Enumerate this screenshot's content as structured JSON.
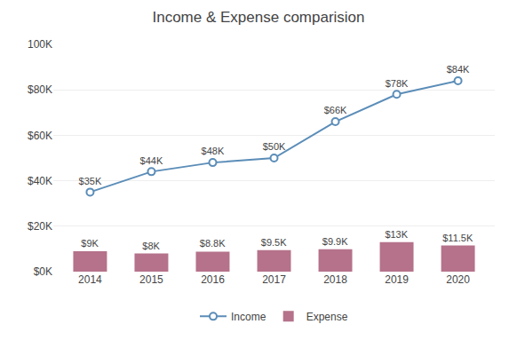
{
  "chart_data": {
    "type": "bar",
    "title": "Income & Expense comparision",
    "categories": [
      "2014",
      "2015",
      "2016",
      "2017",
      "2018",
      "2019",
      "2020"
    ],
    "series": [
      {
        "name": "Income",
        "type": "line",
        "color": "#5b8db8",
        "marker": "circle",
        "values": [
          35000,
          44000,
          48000,
          50000,
          66000,
          78000,
          84000
        ],
        "value_labels": [
          "$35K",
          "$44K",
          "$48K",
          "$50K",
          "$66K",
          "$78K",
          "$84K"
        ]
      },
      {
        "name": "Expense",
        "type": "bar",
        "color": "#b5728a",
        "values": [
          9000,
          8000,
          8800,
          9500,
          9900,
          13000,
          11500
        ],
        "value_labels": [
          "$9K",
          "$8K",
          "$8.8K",
          "$9.5K",
          "$9.9K",
          "$13K",
          "$11.5K"
        ]
      }
    ],
    "ylim": [
      0,
      100000
    ],
    "yticks": [
      {
        "value": 0,
        "label": "$0K"
      },
      {
        "value": 20000,
        "label": "$20K"
      },
      {
        "value": 40000,
        "label": "$40K"
      },
      {
        "value": 60000,
        "label": "$60K"
      },
      {
        "value": 80000,
        "label": "$80K"
      },
      {
        "value": 100000,
        "label": "100K"
      }
    ],
    "grid": true,
    "data_labels": true,
    "legend": "bottom"
  }
}
